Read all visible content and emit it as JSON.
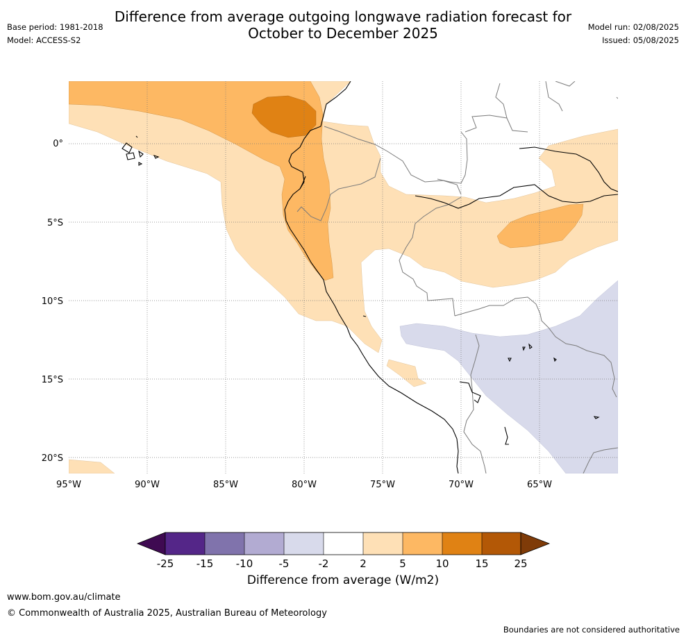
{
  "title_line1": "Difference from average outgoing longwave radiation forecast for",
  "title_line2": "October to December 2025",
  "meta": {
    "base_period": "Base period: 1981-2018",
    "model": "Model: ACCESS-S2",
    "model_run": "Model run: 02/08/2025",
    "issued": "Issued: 05/08/2025"
  },
  "lat_labels": [
    "0°",
    "5°S",
    "10°S",
    "15°S",
    "20°S"
  ],
  "lon_labels": [
    "95°W",
    "90°W",
    "85°W",
    "80°W",
    "75°W",
    "70°W",
    "65°W"
  ],
  "colorbar": {
    "tick_labels": [
      "-25",
      "-15",
      "-10",
      "-5",
      "-2",
      "2",
      "5",
      "10",
      "15",
      "25"
    ],
    "colors": [
      "#3f0a52",
      "#542688",
      "#8073ac",
      "#b2abd2",
      "#d8daeb",
      "#ffffff",
      "#fee0b6",
      "#fdb863",
      "#e08214",
      "#b35806",
      "#7f3b08"
    ],
    "label": "Difference from average (W/m2)"
  },
  "footer": {
    "website": "www.bom.gov.au/climate",
    "copyright": "© Commonwealth of Australia 2025, Australian Bureau of Meteorology",
    "disclaimer": "Boundaries are not considered authoritative"
  },
  "map": {
    "extent": {
      "lon_min": -95,
      "lon_max": -60,
      "lat_min": -21,
      "lat_max": 4
    },
    "anomaly_regions": [
      {
        "category": "2 to 5",
        "color": "#fee0b6"
      },
      {
        "category": "5 to 10",
        "color": "#fdb863"
      },
      {
        "category": "10 to 15",
        "color": "#e08214"
      },
      {
        "category": "-5 to -2",
        "color": "#d8daeb"
      }
    ]
  }
}
